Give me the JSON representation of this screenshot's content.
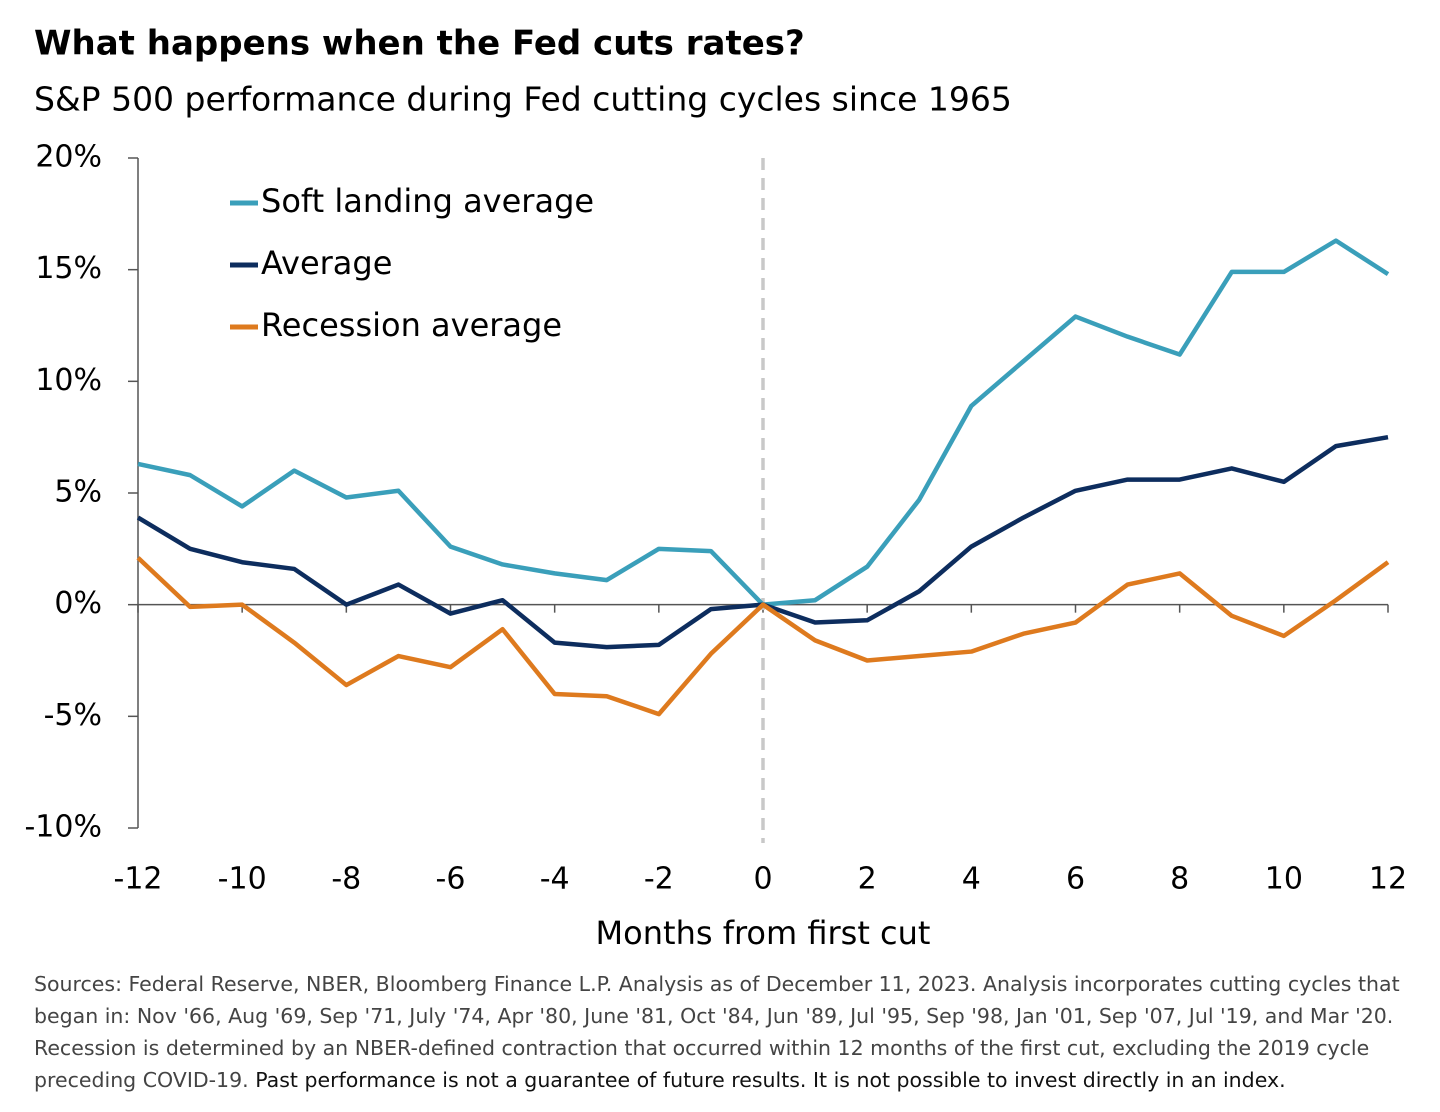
{
  "chart_data": {
    "type": "line",
    "title": "What happens when the Fed cuts rates?",
    "subtitle": "S&P 500 performance during Fed cutting cycles since 1965",
    "x_label": "Months from first cut",
    "x": [
      -12,
      -11,
      -10,
      -9,
      -8,
      -7,
      -6,
      -5,
      -4,
      -3,
      -2,
      -1,
      0,
      1,
      2,
      3,
      4,
      5,
      6,
      7,
      8,
      9,
      10,
      11,
      12
    ],
    "series": [
      {
        "name": "Soft landing average",
        "color": "#3a9fba",
        "values": [
          6.3,
          5.8,
          4.4,
          6.0,
          4.8,
          5.1,
          2.6,
          1.8,
          1.4,
          1.1,
          2.5,
          2.4,
          0,
          0.2,
          1.7,
          4.7,
          8.9,
          10.9,
          12.9,
          12.0,
          11.2,
          14.9,
          14.9,
          16.3,
          14.8
        ]
      },
      {
        "name": "Average",
        "color": "#0d2d5e",
        "values": [
          3.9,
          2.5,
          1.9,
          1.6,
          0,
          0.9,
          -0.4,
          0.2,
          -1.7,
          -1.9,
          -1.8,
          -0.2,
          0,
          -0.8,
          -0.7,
          0.6,
          2.6,
          3.9,
          5.1,
          5.6,
          5.6,
          6.1,
          5.5,
          7.1,
          7.5
        ]
      },
      {
        "name": "Recession average",
        "color": "#de7a1e",
        "values": [
          2.1,
          -0.1,
          0,
          -1.7,
          -3.6,
          -2.3,
          -2.8,
          -1.1,
          -4.0,
          -4.1,
          -4.9,
          -2.2,
          0,
          -1.6,
          -2.5,
          -2.3,
          -2.1,
          -1.3,
          -0.8,
          0.9,
          1.4,
          -0.5,
          -1.4,
          0.2,
          1.9
        ]
      }
    ],
    "xlim": [
      -12,
      12
    ],
    "xticks": [
      -12,
      -10,
      -8,
      -6,
      -4,
      -2,
      0,
      2,
      4,
      6,
      8,
      10,
      12
    ],
    "ylim": [
      -10,
      20
    ],
    "yticks": [
      {
        "value": -10,
        "label": "-10%"
      },
      {
        "value": -5,
        "label": "-5%"
      },
      {
        "value": 0,
        "label": "0%"
      },
      {
        "value": 5,
        "label": "5%"
      },
      {
        "value": 10,
        "label": "10%"
      },
      {
        "value": 15,
        "label": "15%"
      },
      {
        "value": 20,
        "label": "20%"
      }
    ],
    "reference_line_x": 0,
    "legend": "top-left",
    "notes": "Sources: Federal Reserve, NBER, Bloomberg Finance L.P. Analysis as of December 11, 2023. Analysis incorporates cutting cycles that began in: Nov '66, Aug '69, Sep '71, July '74, Apr '80, June '81, Oct '84, Jun '89, Jul '95, Sep '98, Jan '01, Sep '07, Jul '19, and Mar '20. Recession is determined by an NBER-defined contraction that occurred within 12 months of the first cut, excluding the 2019 cycle preceding COVID-19.",
    "disclaimer": "Past performance is not a guarantee of future results. It is not possible to invest directly in an index."
  }
}
